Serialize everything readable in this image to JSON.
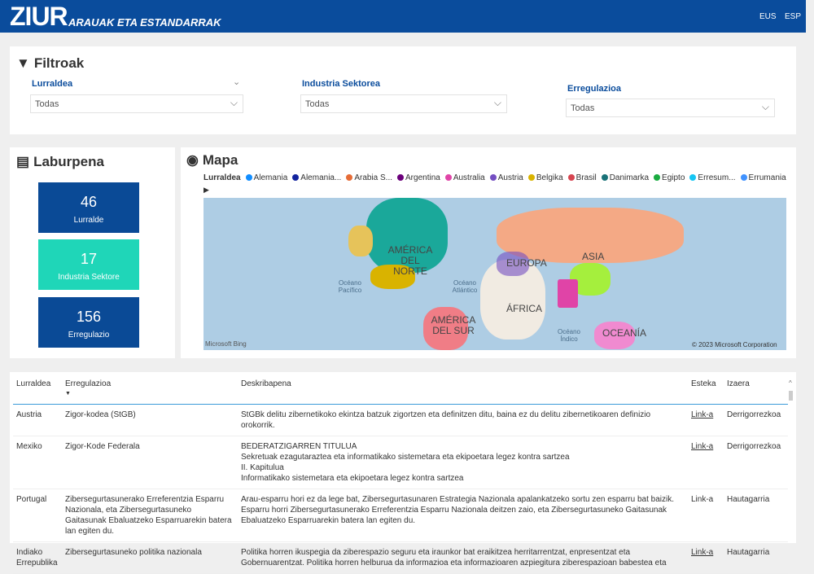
{
  "header": {
    "logo": "ZIUR",
    "subtitle": "ARAUAK ETA ESTANDARRAK",
    "lang": [
      "EUS",
      "ESP"
    ]
  },
  "filters": {
    "title": "Filtroak",
    "items": [
      {
        "label": "Lurraldea",
        "value": "Todas"
      },
      {
        "label": "Industria Sektorea",
        "value": "Todas"
      },
      {
        "label": "Erregulazioa",
        "value": "Todas"
      }
    ]
  },
  "summary": {
    "title": "Laburpena",
    "cards": [
      {
        "value": "46",
        "label": "Lurralde",
        "color": "#0a4a96"
      },
      {
        "value": "17",
        "label": "Industria Sektore",
        "color": "#1fd6b8"
      },
      {
        "value": "156",
        "label": "Erregulazio",
        "color": "#0a4a96"
      }
    ]
  },
  "map": {
    "title": "Mapa",
    "legend_title": "Lurraldea",
    "legend": [
      {
        "name": "Alemania",
        "color": "#118dff"
      },
      {
        "name": "Alemania...",
        "color": "#12239e"
      },
      {
        "name": "Arabia S...",
        "color": "#e66c37"
      },
      {
        "name": "Argentina",
        "color": "#6b007b"
      },
      {
        "name": "Australia",
        "color": "#e044a7"
      },
      {
        "name": "Austria",
        "color": "#744ec2"
      },
      {
        "name": "Belgika",
        "color": "#d9b300"
      },
      {
        "name": "Brasil",
        "color": "#d64550"
      },
      {
        "name": "Danimarka",
        "color": "#197278"
      },
      {
        "name": "Egipto",
        "color": "#1aab40"
      },
      {
        "name": "Erresum...",
        "color": "#15c6f4"
      },
      {
        "name": "Errumania",
        "color": "#4092ff"
      }
    ],
    "labels": [
      "AMÉRICA DEL NORTE",
      "EUROPA",
      "ASIA",
      "ÁFRICA",
      "AMÉRICA DEL SUR",
      "OCEANÍA"
    ],
    "oceans": [
      "Océano Pacífico",
      "Océano Atlántico",
      "Océano Índico"
    ],
    "attribution": "Microsoft Bing",
    "copyright": "© 2023 Microsoft Corporation"
  },
  "table": {
    "columns": [
      "Lurraldea",
      "Erregulazioa",
      "Deskribapena",
      "Esteka",
      "Izaera"
    ],
    "rows": [
      {
        "country": "Austria",
        "regulation": "Zigor-kodea (StGB)",
        "description": "StGBk delitu zibernetikoko ekintza batzuk zigortzen eta definitzen ditu, baina ez du delitu zibernetikoaren definizio orokorrik.",
        "link": "Link-a",
        "type": "Derrigorrezkoa"
      },
      {
        "country": "Mexiko",
        "regulation": "Zigor-Kode Federala",
        "description": "BEDERATZIGARREN TITULUA\nSekretuak ezagutaraztea eta informatikako sistemetara eta ekipoetara legez kontra sartzea\nII. Kapitulua\nInformatikako sistemetara eta ekipoetara legez kontra sartzea",
        "link": "Link-a",
        "type": "Derrigorrezkoa"
      },
      {
        "country": "Portugal",
        "regulation": "Zibersegurtasunerako Erreferentzia Esparru Nazionala, eta Zibersegurtasuneko Gaitasunak Ebaluatzeko Esparruarekin batera lan egiten du.",
        "description": "Arau-esparru hori ez da lege bat, Zibersegurtasunaren Estrategia Nazionala apalankatzeko sortu zen esparru bat baizik. Esparru horri Zibersegurtasunerako Erreferentzia Esparru Nazionala deitzen zaio, eta Zibersegurtasuneko Gaitasunak Ebaluatzeko Esparruarekin batera lan egiten du.",
        "link": "Link-a",
        "type": "Hautagarria"
      },
      {
        "country": "Indiako Errepublika",
        "regulation": "Zibersegurtasuneko politika nazionala",
        "description": "Politika horren ikuspegia da ziberespazio seguru eta iraunkor bat eraikitzea herritarrentzat, enpresentzat eta Gobernuarentzat. Politika horren helburua da informazioa eta informazioaren azpiegitura ziberespazioan babestea eta",
        "link": "Link-a",
        "type": "Hautagarria"
      }
    ]
  }
}
